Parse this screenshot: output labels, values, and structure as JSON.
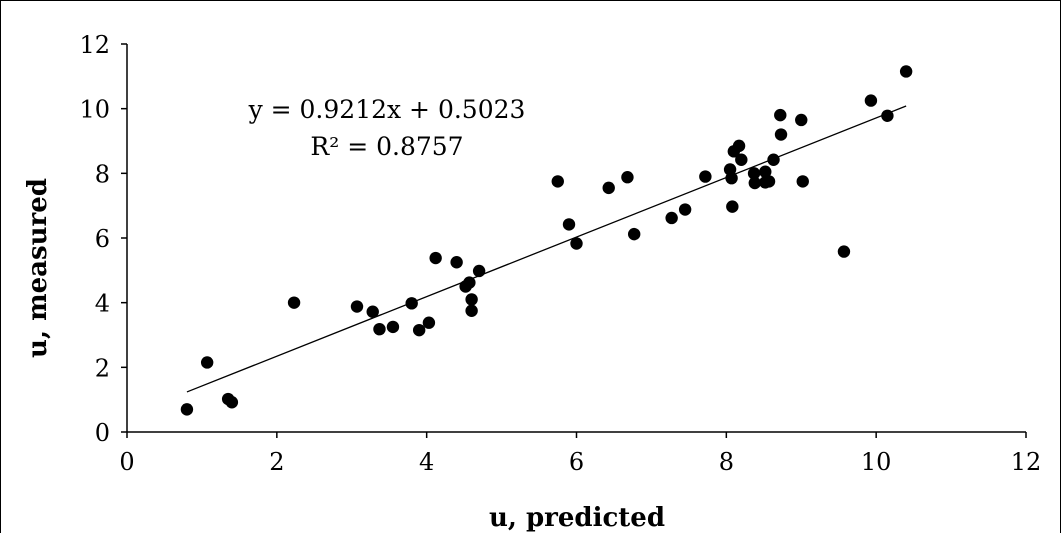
{
  "chart_data": {
    "type": "scatter",
    "xlabel": "u, predicted",
    "ylabel": "u, measured",
    "xlim": [
      0,
      12
    ],
    "ylim": [
      0,
      12
    ],
    "xticks": [
      "0",
      "2",
      "4",
      "6",
      "8",
      "10",
      "12"
    ],
    "yticks": [
      "0",
      "2",
      "4",
      "6",
      "8",
      "10",
      "12"
    ],
    "grid": false,
    "legend": "none",
    "marker_color": "#000000",
    "trendline": {
      "equation": "y = 0.9212x + 0.5023",
      "r_squared": "R² = 0.8757",
      "slope": 0.9212,
      "intercept": 0.5023,
      "x_range": [
        0.8,
        10.4
      ]
    },
    "series": [
      {
        "points": [
          [
            0.8,
            0.7
          ],
          [
            1.07,
            2.15
          ],
          [
            1.35,
            1.02
          ],
          [
            1.4,
            0.92
          ],
          [
            2.23,
            4.0
          ],
          [
            3.07,
            3.88
          ],
          [
            3.28,
            3.72
          ],
          [
            3.37,
            3.18
          ],
          [
            3.55,
            3.25
          ],
          [
            3.8,
            3.98
          ],
          [
            3.9,
            3.15
          ],
          [
            4.03,
            3.38
          ],
          [
            4.12,
            5.38
          ],
          [
            4.4,
            5.25
          ],
          [
            4.52,
            4.5
          ],
          [
            4.57,
            4.62
          ],
          [
            4.6,
            4.1
          ],
          [
            4.6,
            3.75
          ],
          [
            4.7,
            4.98
          ],
          [
            5.75,
            7.75
          ],
          [
            5.9,
            6.42
          ],
          [
            6.0,
            5.83
          ],
          [
            6.43,
            7.55
          ],
          [
            6.68,
            7.88
          ],
          [
            6.77,
            6.12
          ],
          [
            7.27,
            6.62
          ],
          [
            7.45,
            6.88
          ],
          [
            7.72,
            7.9
          ],
          [
            8.05,
            8.12
          ],
          [
            8.07,
            7.85
          ],
          [
            8.08,
            6.97
          ],
          [
            8.1,
            8.68
          ],
          [
            8.17,
            8.85
          ],
          [
            8.2,
            8.42
          ],
          [
            8.37,
            8.0
          ],
          [
            8.38,
            7.7
          ],
          [
            8.52,
            8.05
          ],
          [
            8.52,
            7.72
          ],
          [
            8.57,
            7.75
          ],
          [
            8.63,
            8.42
          ],
          [
            8.72,
            9.8
          ],
          [
            8.73,
            9.2
          ],
          [
            9.0,
            9.65
          ],
          [
            9.02,
            7.75
          ],
          [
            9.57,
            5.58
          ],
          [
            9.93,
            10.25
          ],
          [
            10.15,
            9.78
          ],
          [
            10.4,
            11.15
          ]
        ]
      }
    ]
  }
}
